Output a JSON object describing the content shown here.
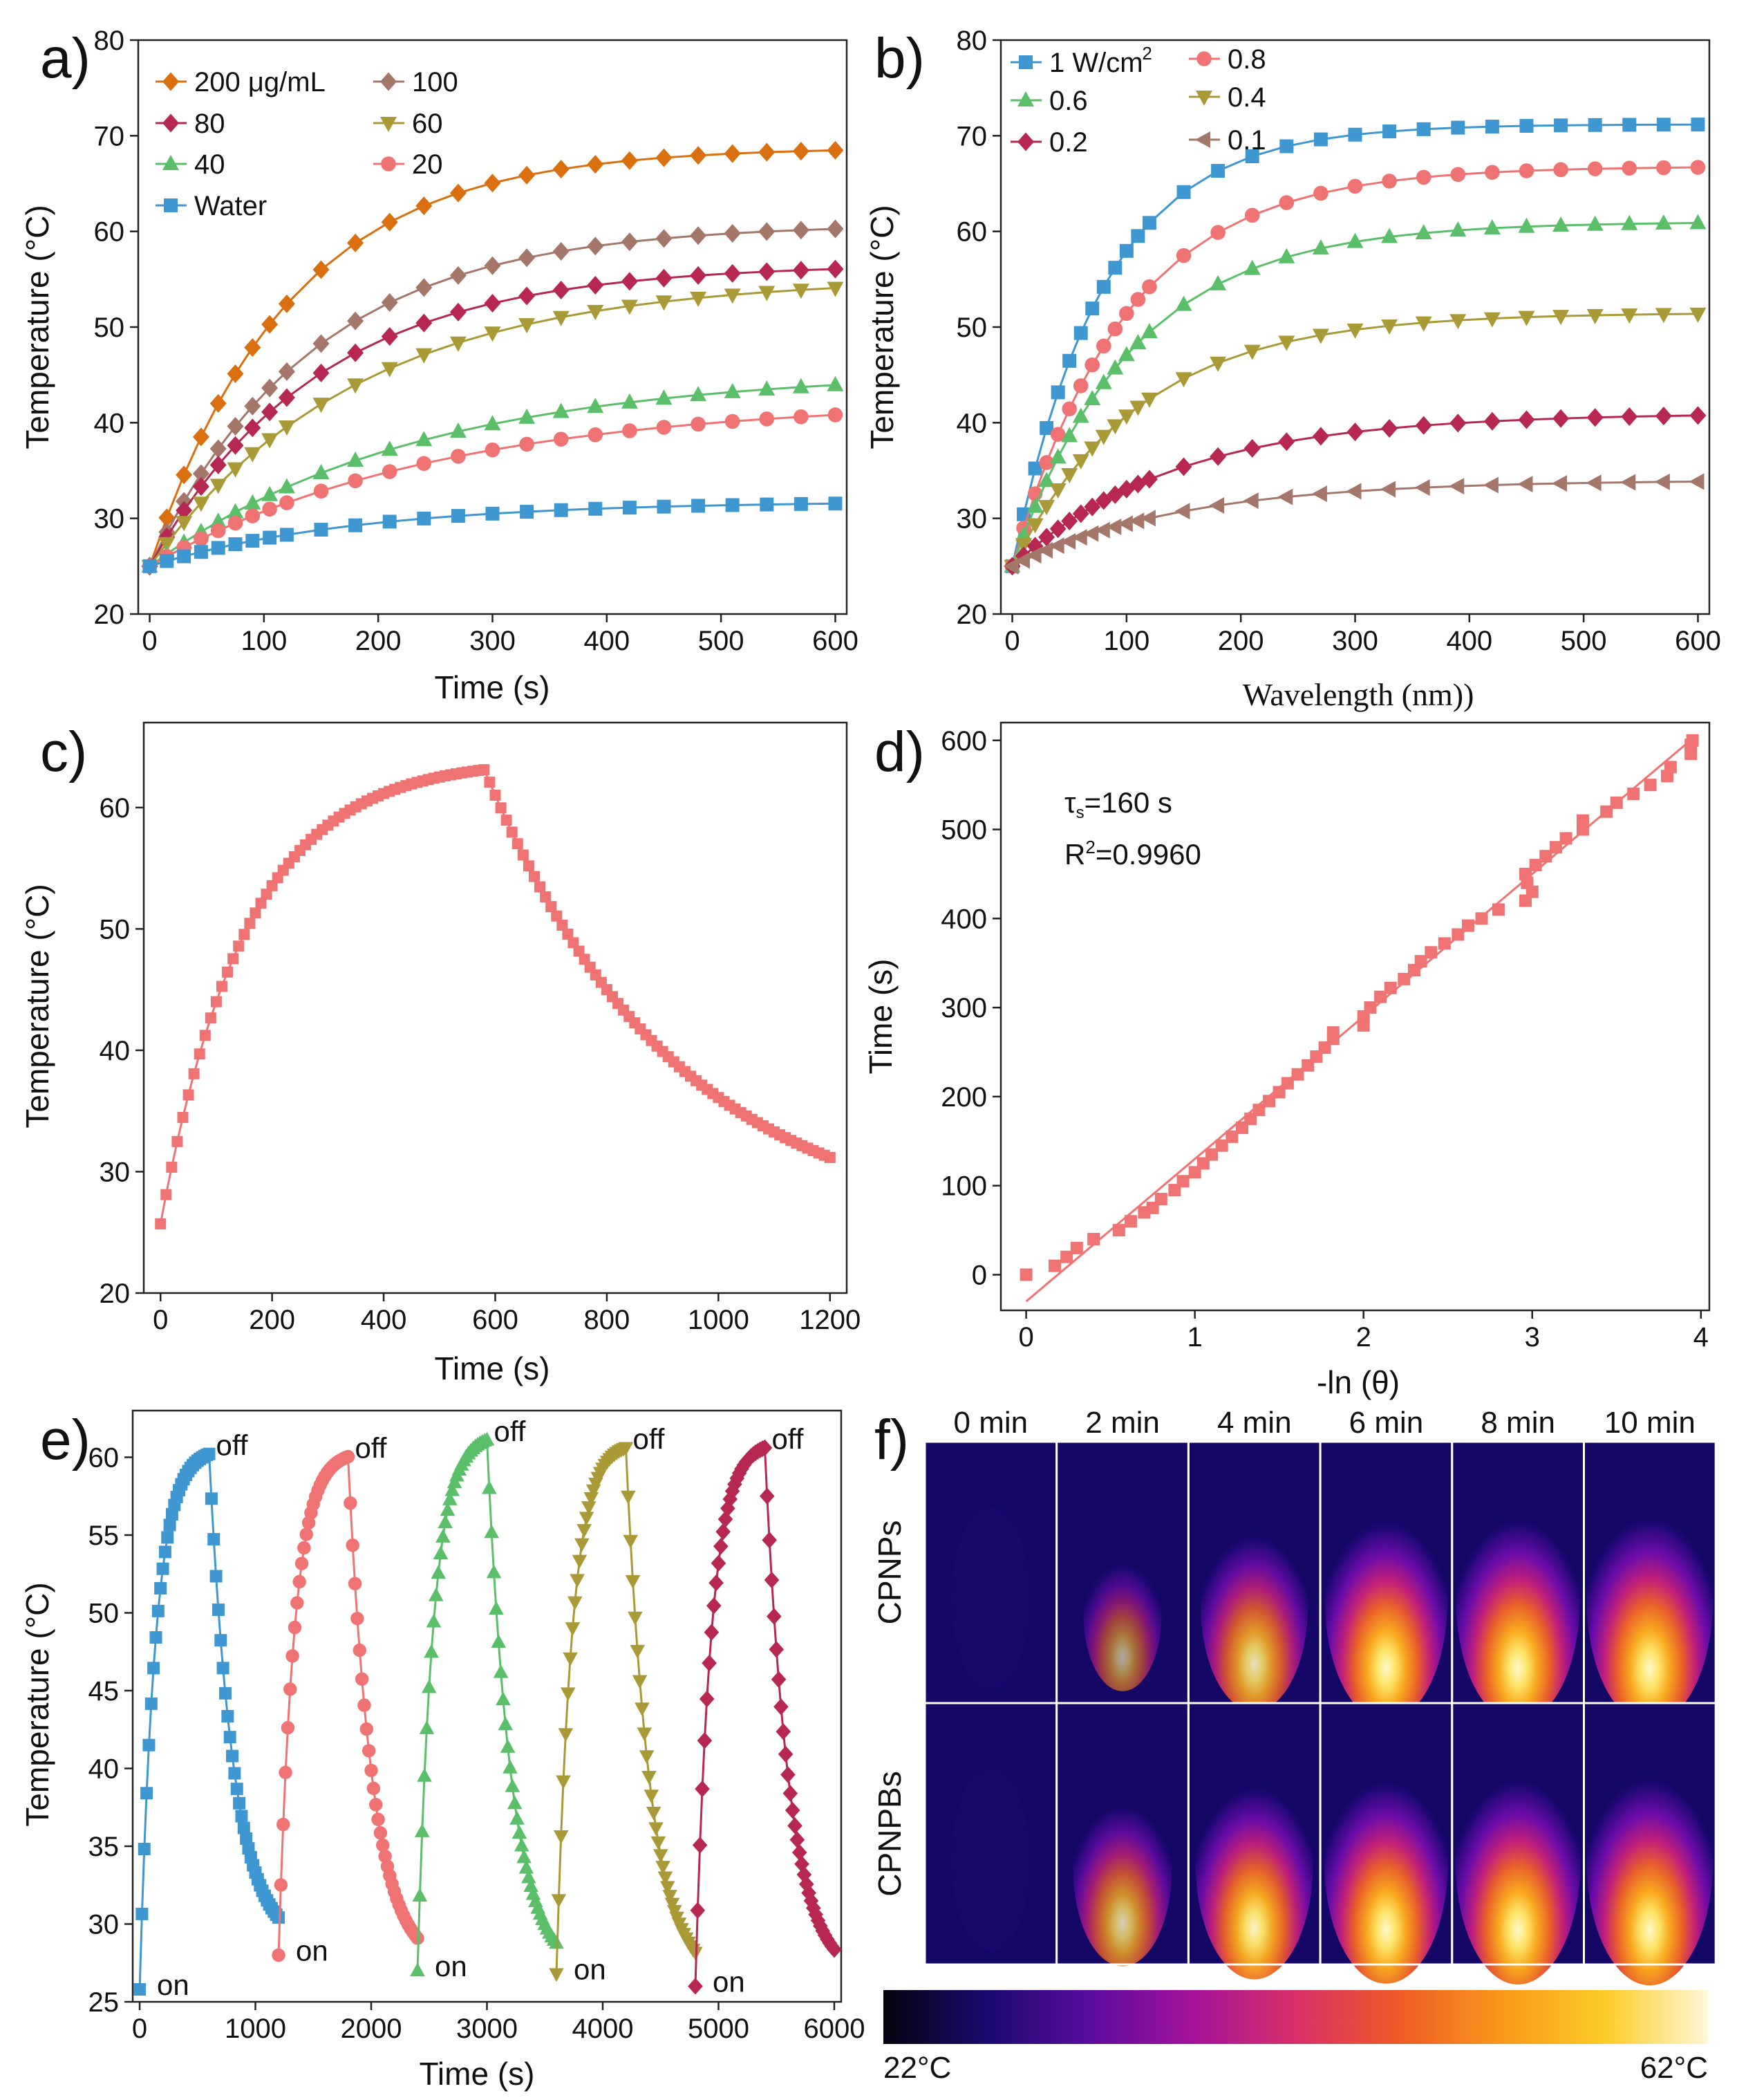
{
  "chart_data": [
    {
      "panel": "a)",
      "type": "line",
      "xlabel": "Time (s)",
      "ylabel": "Temperature (°C)",
      "xlim": [
        -10,
        610
      ],
      "ylim": [
        20,
        80
      ],
      "xticks": [
        0,
        100,
        200,
        300,
        400,
        500,
        600
      ],
      "yticks": [
        20,
        30,
        40,
        50,
        60,
        70,
        80
      ],
      "legend_layout": "two-column",
      "series": [
        {
          "name": "200 μg/mL",
          "color": "#D96F0E",
          "marker": "diamond",
          "plateau": 68.8,
          "rate": 0.0082
        },
        {
          "name": "100",
          "color": "#A5776A",
          "marker": "diamond",
          "plateau": 60.8,
          "rate": 0.007
        },
        {
          "name": "80",
          "color": "#B62752",
          "marker": "diamond",
          "plateau": 56.6,
          "rate": 0.0068
        },
        {
          "name": "60",
          "color": "#A99A37",
          "marker": "triangle-down",
          "plateau": 55.2,
          "rate": 0.0055
        },
        {
          "name": "40",
          "color": "#5BBF6A",
          "marker": "triangle-up",
          "plateau": 45.5,
          "rate": 0.0043
        },
        {
          "name": "20",
          "color": "#F07373",
          "marker": "circle",
          "plateau": 42.4,
          "rate": 0.004
        },
        {
          "name": "Water",
          "color": "#3E97D1",
          "marker": "square",
          "plateau": 31.8,
          "rate": 0.0055
        }
      ],
      "start": 25.0,
      "x_samples": [
        0,
        15,
        30,
        45,
        60,
        75,
        90,
        105,
        120,
        150,
        180,
        210,
        240,
        270,
        300,
        330,
        360,
        390,
        420,
        450,
        480,
        510,
        540,
        570,
        600
      ]
    },
    {
      "panel": "b)",
      "type": "line",
      "xlabel": "Wavelength (nm))",
      "ylabel": "Temperature (°C)",
      "xlim": [
        -10,
        610
      ],
      "ylim": [
        20,
        80
      ],
      "xticks": [
        0,
        100,
        200,
        300,
        400,
        500,
        600
      ],
      "yticks": [
        20,
        30,
        40,
        50,
        60,
        70,
        80
      ],
      "series": [
        {
          "name": "1 W/cm",
          "sup": "2",
          "color": "#3E97D1",
          "marker": "square",
          "plateau": 71.2,
          "rate": 0.0125
        },
        {
          "name": "0.8",
          "color": "#F07373",
          "marker": "circle",
          "plateau": 66.8,
          "rate": 0.01
        },
        {
          "name": "0.6",
          "color": "#5BBF6A",
          "marker": "triangle-up",
          "plateau": 61.0,
          "rate": 0.0095
        },
        {
          "name": "0.4",
          "color": "#A99A37",
          "marker": "triangle-down",
          "plateau": 51.5,
          "rate": 0.009
        },
        {
          "name": "0.2",
          "color": "#B62752",
          "marker": "diamond",
          "plateau": 41.0,
          "rate": 0.007
        },
        {
          "name": "0.1",
          "color": "#A5776A",
          "marker": "triangle-left",
          "plateau": 34.0,
          "rate": 0.0068
        }
      ],
      "start": 25.0,
      "x_samples": [
        0,
        10,
        20,
        30,
        40,
        50,
        60,
        70,
        80,
        90,
        100,
        110,
        120,
        150,
        180,
        210,
        240,
        270,
        300,
        330,
        360,
        390,
        420,
        450,
        480,
        510,
        540,
        570,
        600
      ]
    },
    {
      "panel": "c)",
      "type": "scatter-line",
      "xlabel": "Time (s)",
      "ylabel": "Temperature (°C)",
      "xlim": [
        -30,
        1230
      ],
      "ylim": [
        20,
        67
      ],
      "xticks": [
        0,
        200,
        400,
        600,
        800,
        1000,
        1200
      ],
      "yticks": [
        20,
        30,
        40,
        50,
        60
      ],
      "color": "#F07373",
      "heat": {
        "start": 25.7,
        "plateau": 64.0,
        "rate": 0.0065,
        "end_time": 580
      },
      "cool": {
        "base": 25.0,
        "peak": 63.2,
        "tau": 340,
        "end_time": 1200
      },
      "step": 10
    },
    {
      "panel": "d)",
      "type": "scatter",
      "xlabel": "-ln (θ)",
      "ylabel": "Time (s)",
      "xlim": [
        -0.15,
        4.05
      ],
      "ylim": [
        -40,
        620
      ],
      "xticks": [
        0,
        1,
        2,
        3,
        4
      ],
      "yticks": [
        0,
        100,
        200,
        300,
        400,
        500,
        600
      ],
      "color": "#F07373",
      "fit": {
        "slope": 160,
        "intercept": -30
      },
      "annotation_tau_base": "τ",
      "annotation_tau_sub": "s",
      "annotation_tau_value": "=160 s",
      "annotation_r2_base": "R",
      "annotation_r2_sup": "2",
      "annotation_r2_value": "=0.9960",
      "points": [
        [
          0,
          0
        ],
        [
          0.17,
          10
        ],
        [
          0.24,
          20
        ],
        [
          0.3,
          30
        ],
        [
          0.4,
          40
        ],
        [
          0.55,
          50
        ],
        [
          0.62,
          60
        ],
        [
          0.7,
          70
        ],
        [
          0.75,
          75
        ],
        [
          0.8,
          85
        ],
        [
          0.88,
          95
        ],
        [
          0.93,
          105
        ],
        [
          1.0,
          115
        ],
        [
          1.05,
          125
        ],
        [
          1.1,
          135
        ],
        [
          1.16,
          145
        ],
        [
          1.22,
          155
        ],
        [
          1.28,
          165
        ],
        [
          1.33,
          175
        ],
        [
          1.38,
          185
        ],
        [
          1.44,
          195
        ],
        [
          1.5,
          205
        ],
        [
          1.55,
          215
        ],
        [
          1.61,
          225
        ],
        [
          1.67,
          235
        ],
        [
          1.72,
          245
        ],
        [
          1.77,
          255
        ],
        [
          1.82,
          265
        ],
        [
          1.82,
          272
        ],
        [
          2.0,
          280
        ],
        [
          2.0,
          290
        ],
        [
          2.04,
          300
        ],
        [
          2.1,
          312
        ],
        [
          2.16,
          322
        ],
        [
          2.24,
          332
        ],
        [
          2.3,
          342
        ],
        [
          2.34,
          352
        ],
        [
          2.4,
          362
        ],
        [
          2.48,
          372
        ],
        [
          2.56,
          382
        ],
        [
          2.62,
          392
        ],
        [
          2.7,
          400
        ],
        [
          2.8,
          410
        ],
        [
          2.96,
          420
        ],
        [
          2.97,
          440
        ],
        [
          3.0,
          430
        ],
        [
          2.96,
          450
        ],
        [
          3.02,
          460
        ],
        [
          3.08,
          470
        ],
        [
          3.14,
          480
        ],
        [
          3.2,
          490
        ],
        [
          3.3,
          500
        ],
        [
          3.3,
          510
        ],
        [
          3.44,
          520
        ],
        [
          3.5,
          530
        ],
        [
          3.6,
          540
        ],
        [
          3.7,
          550
        ],
        [
          3.8,
          560
        ],
        [
          3.82,
          570
        ],
        [
          3.94,
          585
        ],
        [
          3.94,
          595
        ],
        [
          3.95,
          600
        ]
      ]
    },
    {
      "panel": "e)",
      "type": "line",
      "xlabel": "Time (s)",
      "ylabel": "Temperature (°C)",
      "xlim": [
        -60,
        6060
      ],
      "ylim": [
        25,
        63
      ],
      "xticks": [
        0,
        1000,
        2000,
        3000,
        4000,
        5000,
        6000
      ],
      "yticks": [
        25,
        30,
        35,
        40,
        45,
        50,
        55,
        60
      ],
      "on_label": "on",
      "off_label": "off",
      "label_color": "#E0238F",
      "cycles": [
        {
          "start": 0,
          "color": "#3E97D1",
          "marker": "square",
          "t_start": 25.8,
          "peak": 60.6,
          "end": 28.6
        },
        {
          "start": 1200,
          "color": "#F07373",
          "marker": "circle",
          "t_start": 28.0,
          "peak": 60.4,
          "end": 27.2
        },
        {
          "start": 2400,
          "color": "#5BBF6A",
          "marker": "triangle-up",
          "t_start": 27.0,
          "peak": 61.5,
          "end": 26.8
        },
        {
          "start": 3600,
          "color": "#A99A37",
          "marker": "triangle-down",
          "t_start": 26.8,
          "peak": 61.0,
          "end": 26.2
        },
        {
          "start": 4800,
          "color": "#B62752",
          "marker": "diamond",
          "t_start": 26.0,
          "peak": 61.0,
          "end": 26.4
        }
      ]
    }
  ],
  "thermal_images": {
    "panel": "f)",
    "columns": [
      "0 min",
      "2 min",
      "4 min",
      "6 min",
      "8 min",
      "10 min"
    ],
    "rows": [
      "CPNPs",
      "CPNPBs"
    ],
    "intensity": [
      [
        0.02,
        0.62,
        0.85,
        0.97,
        0.98,
        1.0
      ],
      [
        0.03,
        0.78,
        0.93,
        0.98,
        0.99,
        1.0
      ]
    ],
    "colorbar_min": "22°C",
    "colorbar_max": "62°C",
    "colorbar_stops": [
      "#05030f",
      "#1a0a6e",
      "#5a0c9e",
      "#a5129a",
      "#d8306a",
      "#ee5a26",
      "#f8981a",
      "#fccc26",
      "#fff7d8"
    ]
  }
}
